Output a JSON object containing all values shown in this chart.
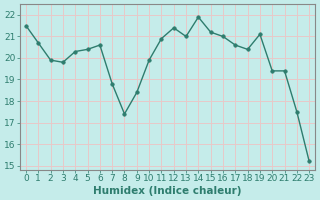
{
  "x": [
    0,
    1,
    2,
    3,
    4,
    5,
    6,
    7,
    8,
    9,
    10,
    11,
    12,
    13,
    14,
    15,
    16,
    17,
    18,
    19,
    20,
    21,
    22,
    23
  ],
  "y": [
    21.5,
    20.7,
    19.9,
    19.8,
    20.3,
    20.4,
    20.6,
    18.8,
    17.4,
    18.4,
    19.9,
    20.9,
    21.4,
    21.0,
    21.9,
    21.2,
    21.0,
    20.6,
    20.4,
    21.1,
    19.4,
    19.4,
    17.5,
    15.2
  ],
  "line_color": "#2e7d6e",
  "marker": "o",
  "markersize": 2.5,
  "linewidth": 1.0,
  "xlabel": "Humidex (Indice chaleur)",
  "xlim": [
    -0.5,
    23.5
  ],
  "ylim": [
    14.8,
    22.5
  ],
  "yticks": [
    15,
    16,
    17,
    18,
    19,
    20,
    21,
    22
  ],
  "xticks": [
    0,
    1,
    2,
    3,
    4,
    5,
    6,
    7,
    8,
    9,
    10,
    11,
    12,
    13,
    14,
    15,
    16,
    17,
    18,
    19,
    20,
    21,
    22,
    23
  ],
  "bg_color": "#c5ecea",
  "grid_color": "#e8c8c8",
  "spine_color": "#888888",
  "tick_color": "#2e7d6e",
  "xlabel_fontsize": 7.5,
  "tick_fontsize": 6.5
}
